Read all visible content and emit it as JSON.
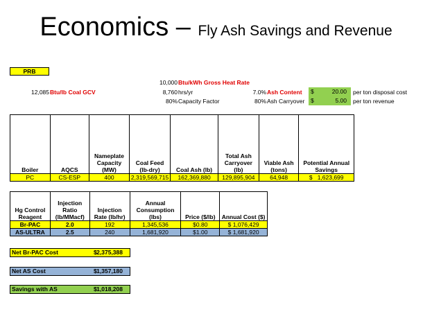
{
  "title": {
    "main": "Economics – ",
    "sub": "Fly Ash Savings and Revenue"
  },
  "prb_label": "PRB",
  "params": {
    "heat_rate_value": "10,000",
    "heat_rate_label": "Btu/kWh Gross Heat Rate",
    "gcv_value": "12,085",
    "gcv_label": "Btu/lb Coal GCV",
    "hours_value": "8,760",
    "hours_label": "hrs/yr",
    "capacity_value": "80%",
    "capacity_label": "Capacity Factor",
    "ash_content_value": "7.0%",
    "ash_content_label": "Ash Content",
    "ash_carryover_value": "80%",
    "ash_carryover_label": "Ash Carryover",
    "disposal_currency": "$",
    "disposal_amount": "20.00",
    "disposal_label": "per ton disposal cost",
    "revenue_currency": "$",
    "revenue_amount": "5.00",
    "revenue_label": "per ton revenue"
  },
  "table1": {
    "headers": [
      "Boiler",
      "AQCS",
      "Nameplate Capacity (MW)",
      "Coal Feed (lb-dry)",
      "Coal Ash (lb)",
      "Total Ash Carryover (lb)",
      "Viable Ash (tons)",
      "Potential Annual Savings"
    ],
    "row": [
      "PC",
      "CS-ESP",
      "400",
      "2,319,569,715",
      "162,369,880",
      "129,895,904",
      "64,948",
      "$",
      "1,623,699"
    ]
  },
  "table2": {
    "headers": [
      "Hg Control Reagent",
      "Injection Ratio (lb/MMacf)",
      "Injection Rate (lb/hr)",
      "Annual Consumption (lbs)",
      "Price ($/lb)",
      "Annual Cost ($)"
    ],
    "rows": [
      [
        "Br-PAC",
        "2.0",
        "192",
        "1,345,536",
        "$0.80",
        "$",
        "1,076,429"
      ],
      [
        "AS-ULTRA",
        "2.5",
        "240",
        "1,681,920",
        "$1.00",
        "$",
        "1,681,920"
      ]
    ]
  },
  "summary": [
    {
      "label": "Net Br-PAC Cost",
      "currency": "$",
      "value": "2,375,388"
    },
    {
      "label": "Net AS Cost",
      "currency": "$",
      "value": "1,357,180"
    },
    {
      "label": "Savings with AS",
      "currency": "$",
      "value": "1,018,208"
    }
  ],
  "colors": {
    "yellow": "#ffff00",
    "green": "#92d050",
    "blue": "#95b3d7",
    "red": "#e00000"
  }
}
